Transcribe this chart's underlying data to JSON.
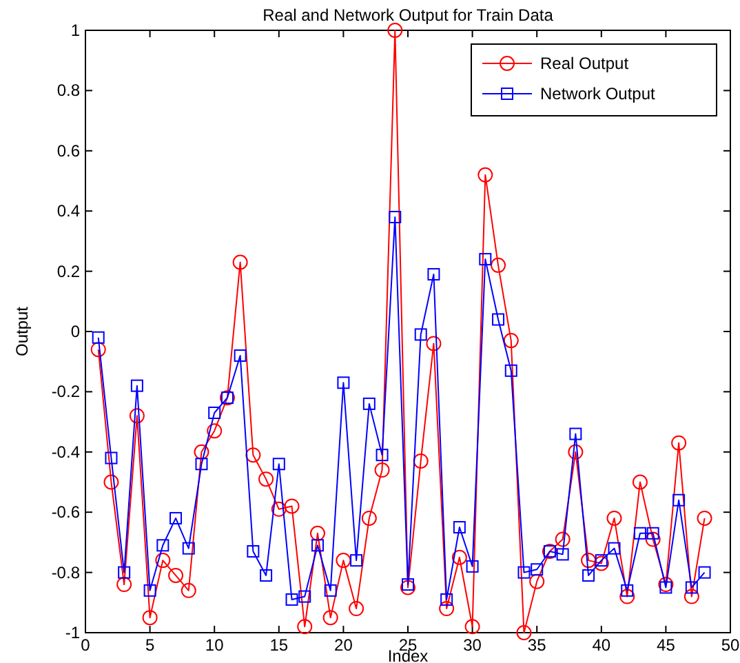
{
  "chart_data": {
    "type": "line",
    "title": "Real and Network Output for Train Data",
    "xlabel": "Index",
    "ylabel": "Output",
    "x": [
      1,
      2,
      3,
      4,
      5,
      6,
      7,
      8,
      9,
      10,
      11,
      12,
      13,
      14,
      15,
      16,
      17,
      18,
      19,
      20,
      21,
      22,
      23,
      24,
      25,
      26,
      27,
      28,
      29,
      30,
      31,
      32,
      33,
      34,
      35,
      36,
      37,
      38,
      39,
      40,
      41,
      42,
      43,
      44,
      45,
      46,
      47,
      48
    ],
    "series": [
      {
        "name": "Real Output",
        "color": "#ff0000",
        "marker": "circle",
        "values": [
          -0.06,
          -0.5,
          -0.84,
          -0.28,
          -0.95,
          -0.76,
          -0.81,
          -0.86,
          -0.4,
          -0.33,
          -0.22,
          0.23,
          -0.41,
          -0.49,
          -0.59,
          -0.58,
          -0.98,
          -0.67,
          -0.95,
          -0.76,
          -0.92,
          -0.62,
          -0.46,
          1.0,
          -0.85,
          -0.43,
          -0.04,
          -0.92,
          -0.75,
          -0.98,
          0.52,
          0.22,
          -0.03,
          -1.0,
          -0.83,
          -0.73,
          -0.69,
          -0.4,
          -0.76,
          -0.77,
          -0.62,
          -0.88,
          -0.5,
          -0.69,
          -0.84,
          -0.37,
          -0.88,
          -0.62
        ]
      },
      {
        "name": "Network Output",
        "color": "#0000ff",
        "marker": "square",
        "values": [
          -0.02,
          -0.42,
          -0.8,
          -0.18,
          -0.86,
          -0.71,
          -0.62,
          -0.72,
          -0.44,
          -0.27,
          -0.22,
          -0.08,
          -0.73,
          -0.81,
          -0.44,
          -0.89,
          -0.88,
          -0.71,
          -0.86,
          -0.17,
          -0.76,
          -0.24,
          -0.41,
          0.38,
          -0.84,
          -0.01,
          0.19,
          -0.89,
          -0.65,
          -0.78,
          0.24,
          0.04,
          -0.13,
          -0.8,
          -0.79,
          -0.73,
          -0.74,
          -0.34,
          -0.81,
          -0.76,
          -0.72,
          -0.86,
          -0.67,
          -0.67,
          -0.85,
          -0.56,
          -0.85,
          -0.8
        ]
      }
    ],
    "xlim": [
      0,
      50
    ],
    "xticks": [
      0,
      5,
      10,
      15,
      20,
      25,
      30,
      35,
      40,
      45,
      50
    ],
    "ylim": [
      -1,
      1
    ],
    "yticks": [
      -1,
      -0.8,
      -0.6,
      -0.4,
      -0.2,
      0,
      0.2,
      0.4,
      0.6,
      0.8,
      1
    ],
    "legend": "top right",
    "grid": false,
    "line_style": "solid"
  }
}
